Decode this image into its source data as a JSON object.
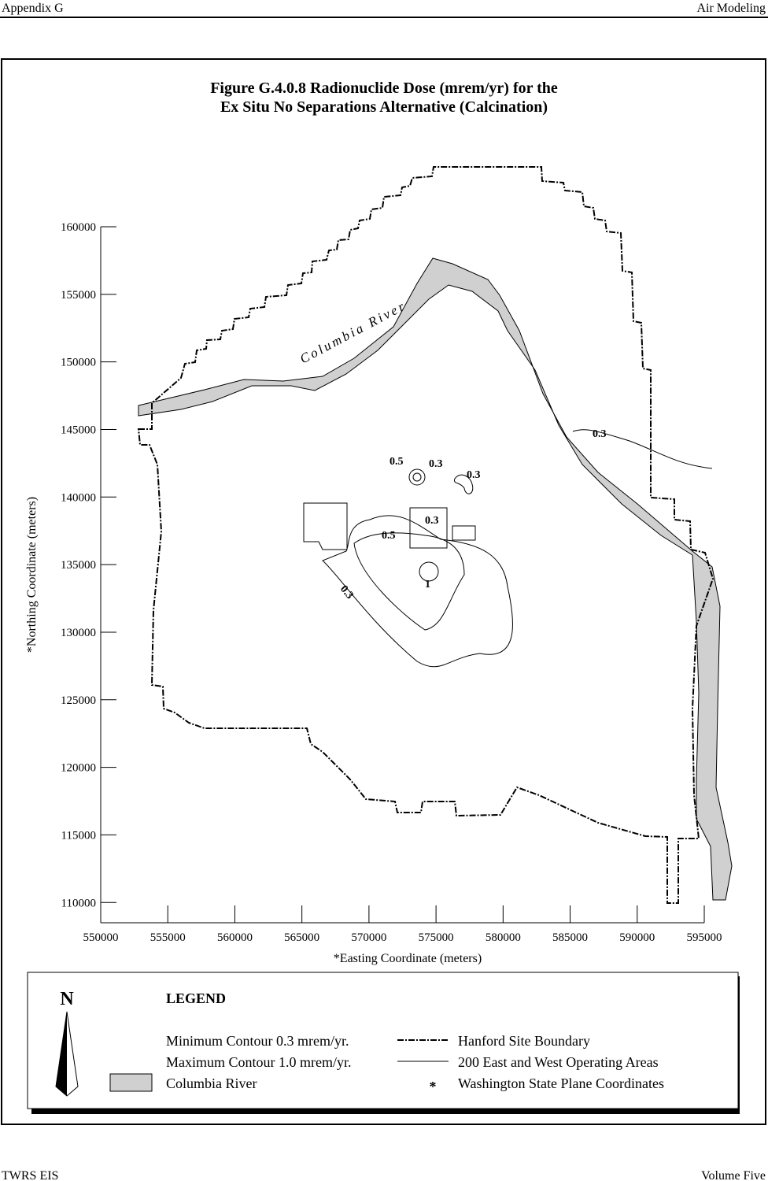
{
  "header": {
    "left": "Appendix G",
    "right": "Air Modeling"
  },
  "figure": {
    "title_lines": [
      "Figure G.4.0.8  Radionuclide Dose (mrem/yr) for the",
      "Ex Situ No Separations Alternative (Calcination)"
    ],
    "xlabel": "*Easting Coordinate (meters)",
    "ylabel": "*Northing Coordinate (meters)",
    "xlim": [
      550000,
      595000
    ],
    "ylim": [
      108500,
      160000
    ],
    "xticks": [
      550000,
      555000,
      560000,
      565000,
      570000,
      575000,
      580000,
      585000,
      590000,
      595000
    ],
    "yticks": [
      110000,
      115000,
      120000,
      125000,
      130000,
      135000,
      140000,
      145000,
      150000,
      155000,
      160000
    ],
    "river_label": "Columbia River",
    "contour_labels": [
      "0.5",
      "0.3",
      "0.3",
      "0.3",
      "0.5",
      "0.3",
      "1",
      "0.3"
    ]
  },
  "legend": {
    "north": "N",
    "title": "LEGEND",
    "left_items": [
      "Minimum Contour 0.3 mrem/yr.",
      "Maximum Contour 1.0 mrem/yr.",
      "Columbia River"
    ],
    "right_items": [
      "Hanford Site Boundary",
      "200 East and West Operating Areas",
      "Washington State Plane Coordinates"
    ],
    "asterisk": "*"
  },
  "footer": {
    "left": "TWRS EIS",
    "right": "Volume Five"
  }
}
